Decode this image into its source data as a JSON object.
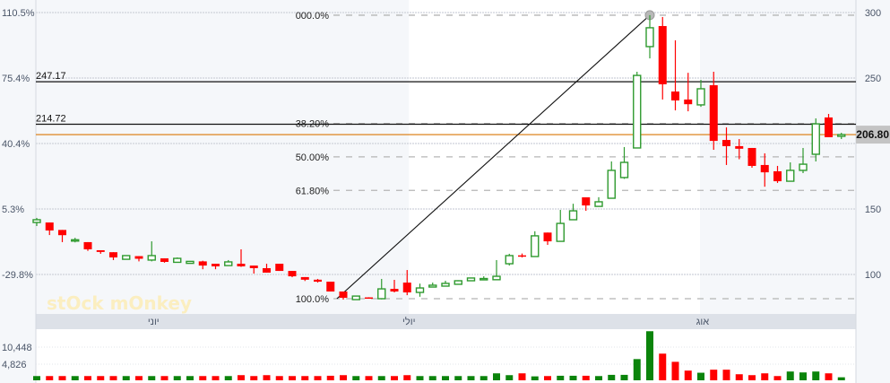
{
  "chart_data": {
    "type": "candlestick",
    "price_axis": {
      "ticks": [
        300,
        250,
        150,
        100
      ],
      "gridlines": [
        300,
        250,
        200,
        150,
        100
      ],
      "range": [
        79,
        302
      ]
    },
    "percent_axis": {
      "labels": [
        "110.5%",
        "75.4%",
        "40.4%",
        "5.3%",
        "-29.8%"
      ],
      "at_prices": [
        300,
        250,
        200,
        150,
        100
      ]
    },
    "last_price": {
      "value": 206.8,
      "label": "206.80",
      "color": "#d97706"
    },
    "horizontal_lines": [
      {
        "value": 247.17,
        "label": "247.17"
      },
      {
        "value": 214.72,
        "label": "214.72"
      }
    ],
    "fibonacci": {
      "from_price": 81.5,
      "to_price": 298,
      "from_index": 23.5,
      "to_index": 48,
      "levels": [
        {
          "label": "000.0%",
          "price": 298
        },
        {
          "label": "38.20%",
          "price": 215.3
        },
        {
          "label": "50.00%",
          "price": 189.8
        },
        {
          "label": "61.80%",
          "price": 164.2
        },
        {
          "label": "100.0%",
          "price": 81.5
        }
      ]
    },
    "months": [
      {
        "label": "יוני",
        "index": 9
      },
      {
        "label": "יולי",
        "index": 29
      },
      {
        "label": "אוג",
        "index": 52
      }
    ],
    "volume_axis": {
      "labels": [
        "10,448",
        "4,826"
      ],
      "values": [
        10448,
        4826
      ]
    },
    "candles": [
      [
        139.7,
        141.8,
        143.2,
        137.0
      ],
      [
        139.7,
        133.6,
        139.7,
        130.1
      ],
      [
        134,
        130,
        134,
        124.7
      ],
      [
        126,
        126.5,
        128,
        124.5
      ],
      [
        124.7,
        119.2,
        124.7,
        118
      ],
      [
        118.5,
        117.2,
        118.5,
        115.8
      ],
      [
        117,
        113,
        117,
        111
      ],
      [
        111.6,
        114.4,
        114.6,
        111.4
      ],
      [
        114,
        112,
        114,
        110
      ],
      [
        111,
        114.4,
        125.3,
        110
      ],
      [
        112.3,
        109.6,
        112.3,
        109
      ],
      [
        109.3,
        112.3,
        113,
        109.3
      ],
      [
        108.5,
        110,
        110.3,
        108.3
      ],
      [
        110,
        106.8,
        110.5,
        104
      ],
      [
        108.2,
        106.2,
        108.2,
        104
      ],
      [
        106.8,
        109.6,
        111,
        106.8
      ],
      [
        108.2,
        106.2,
        119.2,
        105.8
      ],
      [
        106.8,
        104.8,
        106.8,
        100.7
      ],
      [
        104.8,
        101.4,
        108.2,
        101.4
      ],
      [
        108.2,
        102.7,
        108.2,
        102.7
      ],
      [
        102.7,
        98.6,
        102.7,
        97.9
      ],
      [
        98,
        96,
        98,
        95
      ],
      [
        96,
        94.5,
        96.6,
        93.8
      ],
      [
        94.5,
        87,
        94.5,
        87
      ],
      [
        87,
        82.2,
        87,
        80.8
      ],
      [
        80.8,
        83.5,
        83.5,
        80.8
      ],
      [
        82.5,
        82,
        82.6,
        81.9
      ],
      [
        81.5,
        89,
        96.6,
        81
      ],
      [
        89,
        87,
        95.9,
        86.3
      ],
      [
        93.8,
        86.3,
        103.4,
        84.2
      ],
      [
        86.3,
        89.7,
        93,
        83
      ],
      [
        90.4,
        91.8,
        93.8,
        90.4
      ],
      [
        91.1,
        93.2,
        95.2,
        91.1
      ],
      [
        92.5,
        95.2,
        95.6,
        92.5
      ],
      [
        95.2,
        97.3,
        97.6,
        95.2
      ],
      [
        96.6,
        96.9,
        98.6,
        96.6
      ],
      [
        96,
        98.6,
        111,
        96
      ],
      [
        108.2,
        114.4,
        115.8,
        106.8
      ],
      [
        114.6,
        114.2,
        116,
        113
      ],
      [
        113.7,
        129.5,
        133,
        113.7
      ],
      [
        132,
        125.3,
        132,
        122.6
      ],
      [
        125.3,
        139,
        149.3,
        125.3
      ],
      [
        141.8,
        148.6,
        154,
        141.8
      ],
      [
        158.9,
        152.7,
        158.9,
        148.6
      ],
      [
        152,
        155.5,
        159,
        152
      ],
      [
        158.2,
        179.5,
        186.3,
        158.2
      ],
      [
        174,
        185.6,
        197.3,
        173
      ],
      [
        196.6,
        252,
        254.8,
        196.6
      ],
      [
        274,
        288.4,
        298,
        265
      ],
      [
        289.7,
        245.2,
        296.6,
        233.6
      ],
      [
        239.7,
        232.9,
        278.8,
        225.3
      ],
      [
        233.6,
        230,
        254,
        224.6
      ],
      [
        229.5,
        241.8,
        248.6,
        228
      ],
      [
        244.5,
        202,
        254.8,
        195.2
      ],
      [
        202.7,
        198,
        212.3,
        183.6
      ],
      [
        198,
        196,
        203.4,
        188
      ],
      [
        196.6,
        182.9,
        196.6,
        181.5
      ],
      [
        183.6,
        178,
        192.5,
        167
      ],
      [
        178.8,
        171.2,
        182.9,
        169.9
      ],
      [
        171.2,
        179.5,
        185.6,
        171.2
      ],
      [
        179.5,
        184.2,
        196.6,
        177.4
      ],
      [
        191.8,
        215,
        219.2,
        186.3
      ],
      [
        219.9,
        204.8,
        222.6,
        204.8
      ],
      [
        205.5,
        206.8,
        208.2,
        203.4
      ]
    ],
    "volumes": [
      900,
      900,
      900,
      900,
      900,
      900,
      900,
      900,
      900,
      900,
      900,
      900,
      900,
      900,
      900,
      900,
      1200,
      900,
      1200,
      900,
      900,
      900,
      900,
      1000,
      1200,
      900,
      900,
      900,
      900,
      1200,
      900,
      900,
      900,
      900,
      900,
      900,
      1800,
      1200,
      1800,
      800,
      900,
      1000,
      1000,
      1000,
      900,
      1300,
      1300,
      6500,
      15700,
      8300,
      5600,
      2700,
      2000,
      3000,
      3000,
      1500,
      1200,
      1800,
      900,
      2400,
      2100,
      2400,
      1800,
      500
    ],
    "colors": {
      "up": "#2e9a2e",
      "up_volume": "#0b840b",
      "down": "#ff0000",
      "grid": "#d5d9e0",
      "fib": "#b5b5b5"
    }
  },
  "watermark": "stOck mOnkey"
}
